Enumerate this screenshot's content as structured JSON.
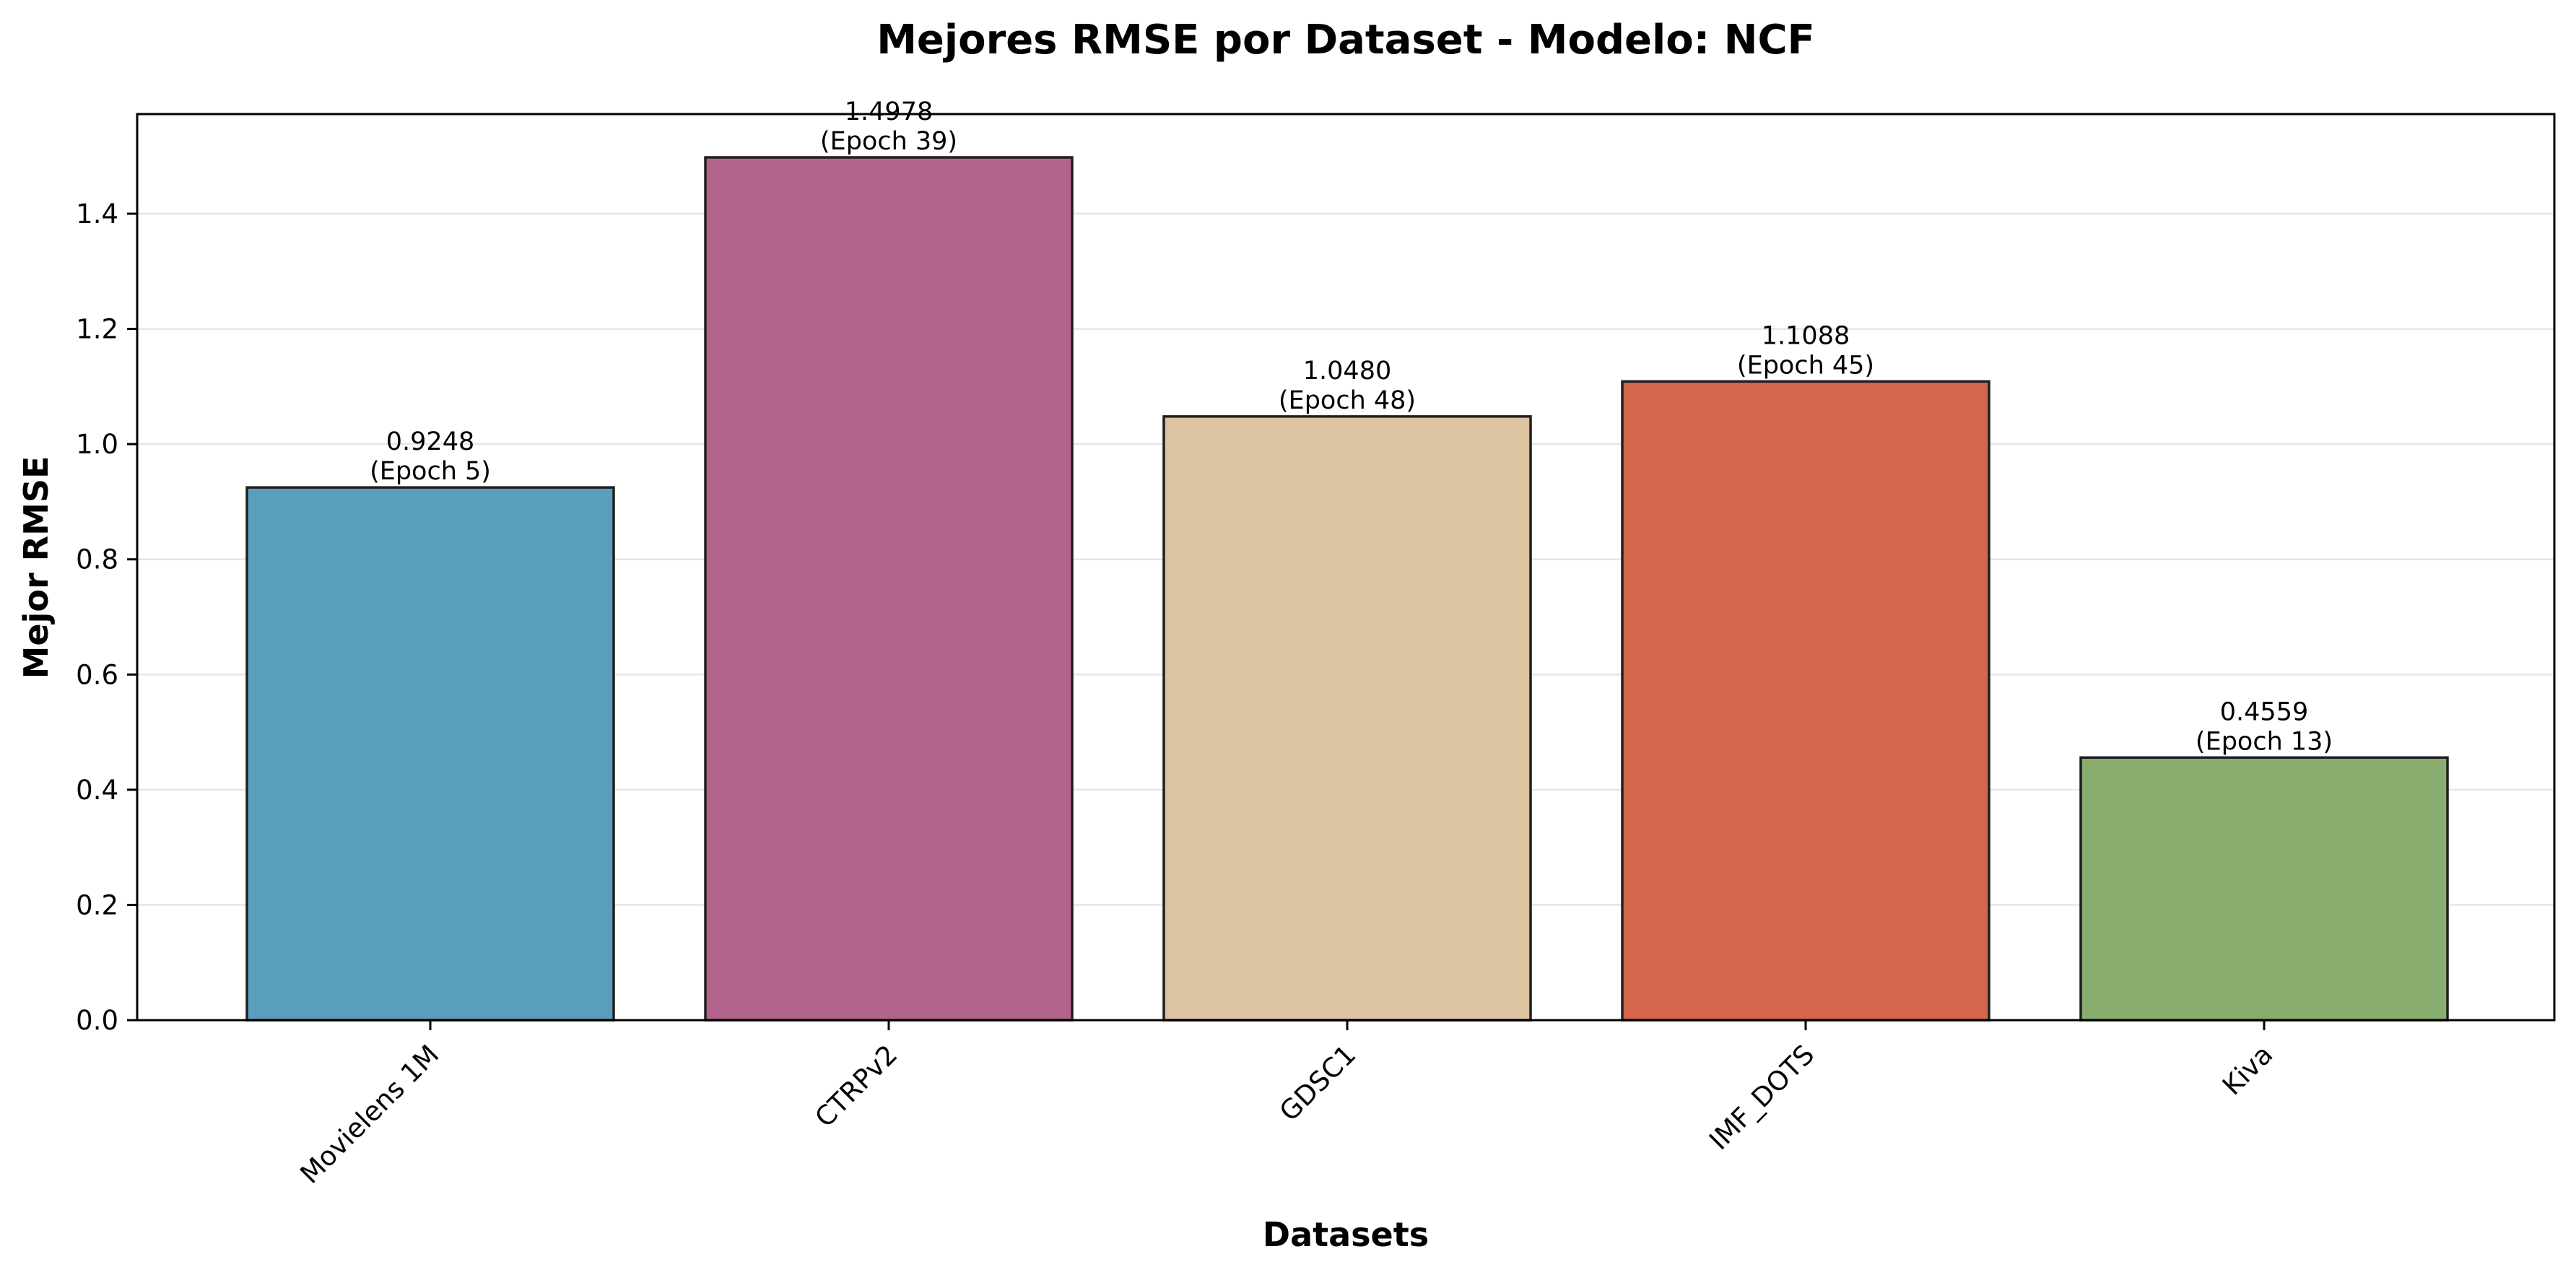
{
  "chart_data": {
    "type": "bar",
    "title": "Mejores RMSE por Dataset - Modelo: NCF",
    "xlabel": "Datasets",
    "ylabel": "Mejor RMSE",
    "ylim": [
      0,
      1.573
    ],
    "yticks": [
      0.0,
      0.2,
      0.4,
      0.6,
      0.8,
      1.0,
      1.2,
      1.4
    ],
    "grid": "horizontal",
    "categories": [
      "Movielens 1M",
      "CTRPv2",
      "GDSC1",
      "IMF_DOTS",
      "Kiva"
    ],
    "values": [
      0.9248,
      1.4978,
      1.048,
      1.1088,
      0.4559
    ],
    "value_labels": [
      "0.9248",
      "1.4978",
      "1.0480",
      "1.1088",
      "0.4559"
    ],
    "epoch_labels": [
      "(Epoch 5)",
      "(Epoch 39)",
      "(Epoch 48)",
      "(Epoch 45)",
      "(Epoch 13)"
    ],
    "colors": [
      "#5a9ebd",
      "#b2638b",
      "#dcc3a2",
      "#d3664c",
      "#89ad6f"
    ],
    "edge_color": "#1f1f1f"
  }
}
